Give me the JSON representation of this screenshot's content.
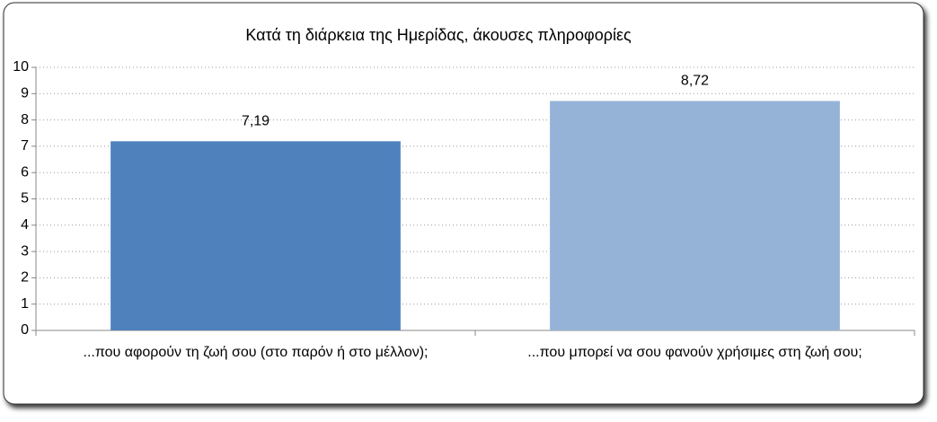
{
  "chart_data": {
    "type": "bar",
    "title": "Κατά τη διάρκεια της Ημερίδας, άκουσες πληροφορίες",
    "categories": [
      "...που αφορούν τη ζωή σου (στο παρόν ή στο μέλλον);",
      "...που μπορεί να σου φανούν χρήσιμες στη ζωή σου;"
    ],
    "values": [
      7.19,
      8.72
    ],
    "value_labels": [
      "7,19",
      "8,72"
    ],
    "colors": [
      "#4f81bd",
      "#95b3d7"
    ],
    "ylim": [
      0,
      10
    ],
    "yticks": [
      0,
      1,
      2,
      3,
      4,
      5,
      6,
      7,
      8,
      9,
      10
    ],
    "grid": true
  }
}
